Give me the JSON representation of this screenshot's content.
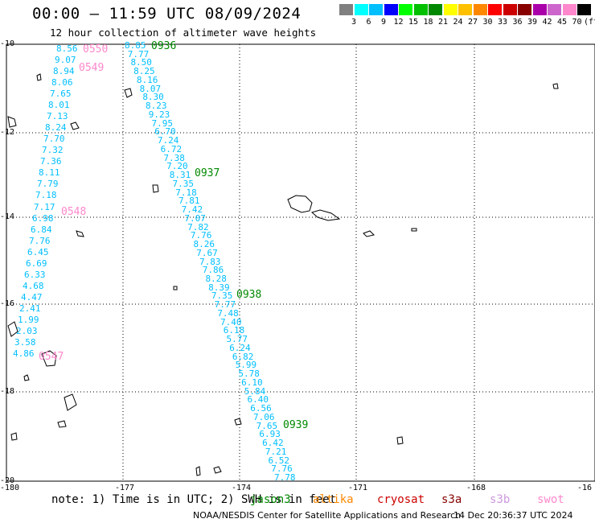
{
  "title": "00:00 – 11:59 UTC 08/09/2024",
  "subtitle": "12 hour collection of altimeter wave heights",
  "scale": {
    "unit": "(ft)",
    "colors": [
      "#808080",
      "#00ffff",
      "#00bfff",
      "#0000ff",
      "#00ff00",
      "#00c000",
      "#008800",
      "#ffff00",
      "#ffc000",
      "#ff8800",
      "#ff0000",
      "#cc0000",
      "#880000",
      "#aa00aa",
      "#cc66cc",
      "#ff88cc",
      "#000000"
    ],
    "labels": [
      "3",
      "6",
      "9",
      "12",
      "15",
      "18",
      "21",
      "24",
      "27",
      "30",
      "33",
      "36",
      "39",
      "42",
      "45",
      "70"
    ]
  },
  "axes": {
    "lat_labels": [
      "-10",
      "-12",
      "-14",
      "-16",
      "-18",
      "-20"
    ],
    "lon_labels": [
      "-180",
      "-177",
      "-174",
      "-171",
      "-168",
      "-16"
    ]
  },
  "note": "note:  1) Time is in UTC; 2) SWH is in feet",
  "satellites": [
    {
      "name": "jason3",
      "color": "#008800"
    },
    {
      "name": "altika",
      "color": "#ff8800"
    },
    {
      "name": "cryosat",
      "color": "#cc0000"
    },
    {
      "name": "s3a",
      "color": "#880000"
    },
    {
      "name": "s3b",
      "color": "#cc99dd"
    },
    {
      "name": "swot",
      "color": "#ff88cc"
    }
  ],
  "credit": "NOAA/NESDIS Center for Satellite Applications and Research",
  "timestamp": "14 Dec 20:36:37 UTC 2024",
  "tracks": {
    "track_left": {
      "color": "#00bfff",
      "times": [
        {
          "label": "0550",
          "color": "#ff88cc"
        },
        {
          "label": "0549",
          "color": "#ff88cc"
        },
        {
          "label": "0548",
          "color": "#ff88cc"
        },
        {
          "label": "0547",
          "color": "#ff88cc"
        }
      ],
      "values": [
        "8.56",
        "9.07",
        "8.94",
        "8.06",
        "7.65",
        "8.01",
        "7.13",
        "8.24",
        "7.70",
        "7.32",
        "7.36",
        "8.11",
        "7.79",
        "7.18",
        "7.17",
        "6.98",
        "6.84",
        "7.76",
        "6.45",
        "6.69",
        "6.33",
        "4.68",
        "4.47",
        "2.41",
        "1.99",
        "2.03",
        "3.58",
        "4.86"
      ]
    },
    "track_right": {
      "color": "#00bfff",
      "times": [
        {
          "label": "0936",
          "color": "#008800"
        },
        {
          "label": "0937",
          "color": "#008800"
        },
        {
          "label": "0938",
          "color": "#008800"
        },
        {
          "label": "0939",
          "color": "#008800"
        }
      ],
      "values": [
        "8.85",
        "7.77",
        "8.50",
        "8.25",
        "8.16",
        "8.07",
        "8.30",
        "8.23",
        "9.23",
        "7.95",
        "6.70",
        "7.24",
        "6.72",
        "7.38",
        "7.20",
        "8.31",
        "7.35",
        "7.18",
        "7.81",
        "7.42",
        "7.07",
        "7.82",
        "7.76",
        "8.26",
        "7.67",
        "7.83",
        "7.86",
        "8.28",
        "8.39",
        "7.35",
        "7.77",
        "7.48",
        "7.40",
        "6.18",
        "5.77",
        "6.24",
        "6.82",
        "5.99",
        "5.78",
        "6.10",
        "5.84",
        "6.40",
        "6.56",
        "7.06",
        "7.65",
        "6.93",
        "6.42",
        "7.21",
        "6.52",
        "7.76",
        "7.78"
      ]
    }
  }
}
